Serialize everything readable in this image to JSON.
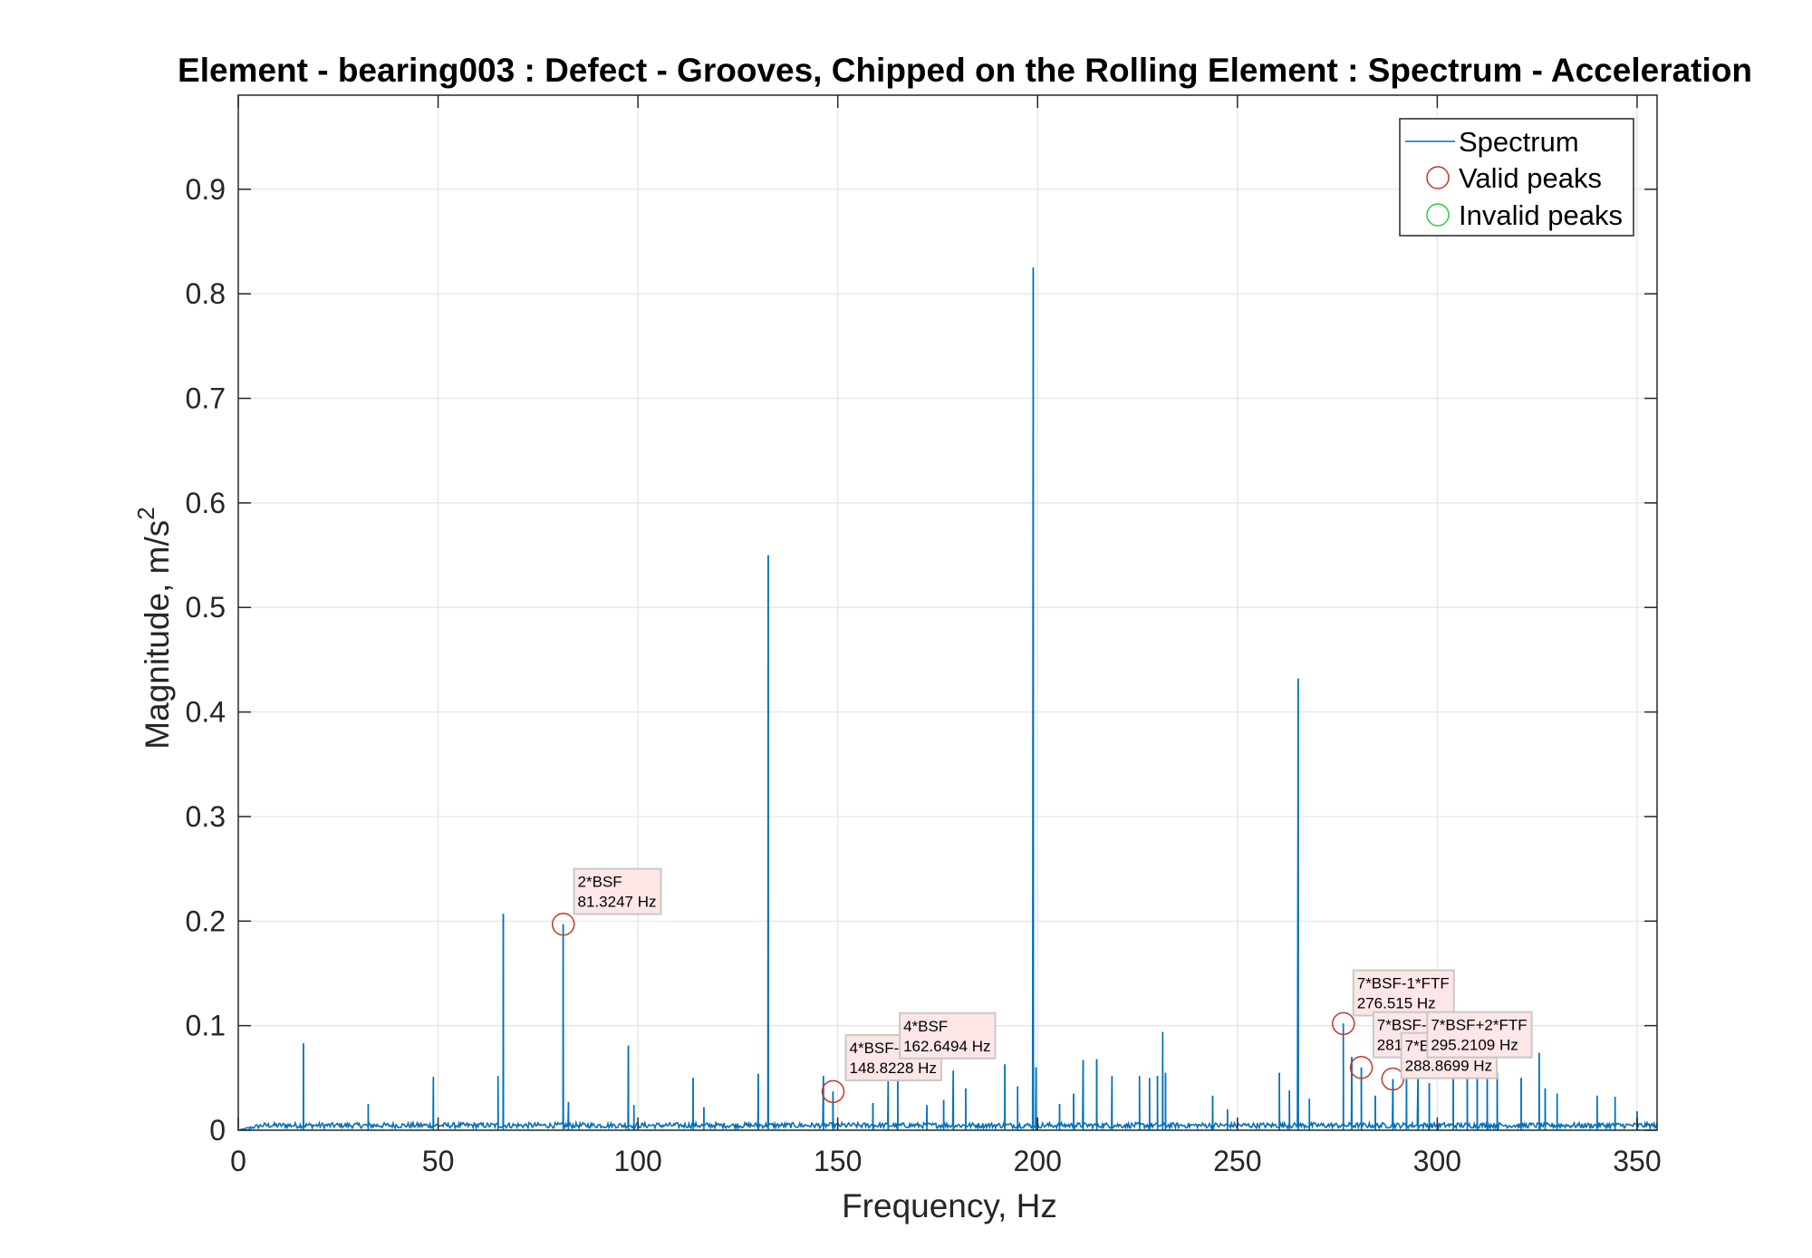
{
  "chart_data": {
    "type": "line",
    "title": "Element - bearing003 : Defect - Grooves, Chipped on the Rolling Element : Spectrum - Acceleration",
    "xlabel": "Frequency, Hz",
    "ylabel": "Magnitude, m/s",
    "ylabel_sup": "2",
    "xlim": [
      0,
      355
    ],
    "ylim": [
      0,
      0.99
    ],
    "xticks": [
      0,
      50,
      100,
      150,
      200,
      250,
      300,
      350
    ],
    "yticks": [
      0,
      0.1,
      0.2,
      0.3,
      0.4,
      0.5,
      0.6,
      0.7,
      0.8,
      0.9
    ],
    "xtick_labels": [
      "0",
      "50",
      "100",
      "150",
      "200",
      "250",
      "300",
      "350"
    ],
    "ytick_labels": [
      "0",
      "0.1",
      "0.2",
      "0.3",
      "0.4",
      "0.5",
      "0.6",
      "0.7",
      "0.8",
      "0.9"
    ],
    "grid": true,
    "legend_position": "top-right",
    "legend": [
      {
        "label": "Spectrum",
        "marker": "line",
        "color": "#0072BD"
      },
      {
        "label": "Valid peaks",
        "marker": "circle",
        "color": "#C0392B"
      },
      {
        "label": "Invalid peaks",
        "marker": "circle",
        "color": "#2ECC40"
      }
    ],
    "series": [
      {
        "name": "Spectrum",
        "color": "#0072BD",
        "noise_floor": 0.004,
        "peaks": [
          {
            "x": 16.3,
            "y": 0.083
          },
          {
            "x": 32.5,
            "y": 0.025
          },
          {
            "x": 48.8,
            "y": 0.051
          },
          {
            "x": 65.0,
            "y": 0.052
          },
          {
            "x": 66.3,
            "y": 0.207
          },
          {
            "x": 81.3,
            "y": 0.197
          },
          {
            "x": 82.6,
            "y": 0.027
          },
          {
            "x": 97.6,
            "y": 0.081
          },
          {
            "x": 99.0,
            "y": 0.024
          },
          {
            "x": 113.8,
            "y": 0.05
          },
          {
            "x": 116.5,
            "y": 0.022
          },
          {
            "x": 130.1,
            "y": 0.054
          },
          {
            "x": 132.6,
            "y": 0.55
          },
          {
            "x": 146.4,
            "y": 0.052
          },
          {
            "x": 148.8,
            "y": 0.037
          },
          {
            "x": 158.8,
            "y": 0.026
          },
          {
            "x": 162.6,
            "y": 0.05
          },
          {
            "x": 165.0,
            "y": 0.048
          },
          {
            "x": 172.3,
            "y": 0.024
          },
          {
            "x": 176.5,
            "y": 0.029
          },
          {
            "x": 178.9,
            "y": 0.057
          },
          {
            "x": 182.0,
            "y": 0.04
          },
          {
            "x": 191.8,
            "y": 0.063
          },
          {
            "x": 195.0,
            "y": 0.042
          },
          {
            "x": 198.9,
            "y": 0.825
          },
          {
            "x": 199.6,
            "y": 0.06
          },
          {
            "x": 205.5,
            "y": 0.025
          },
          {
            "x": 209.0,
            "y": 0.035
          },
          {
            "x": 211.4,
            "y": 0.067
          },
          {
            "x": 214.8,
            "y": 0.068
          },
          {
            "x": 218.6,
            "y": 0.052
          },
          {
            "x": 225.5,
            "y": 0.052
          },
          {
            "x": 228.0,
            "y": 0.05
          },
          {
            "x": 230.0,
            "y": 0.052
          },
          {
            "x": 231.3,
            "y": 0.094
          },
          {
            "x": 232.0,
            "y": 0.055
          },
          {
            "x": 243.8,
            "y": 0.033
          },
          {
            "x": 247.5,
            "y": 0.02
          },
          {
            "x": 260.5,
            "y": 0.055
          },
          {
            "x": 263.0,
            "y": 0.038
          },
          {
            "x": 265.2,
            "y": 0.432
          },
          {
            "x": 268.0,
            "y": 0.03
          },
          {
            "x": 276.5,
            "y": 0.102
          },
          {
            "x": 278.6,
            "y": 0.07
          },
          {
            "x": 281.0,
            "y": 0.06
          },
          {
            "x": 284.5,
            "y": 0.033
          },
          {
            "x": 288.9,
            "y": 0.049
          },
          {
            "x": 292.3,
            "y": 0.055
          },
          {
            "x": 295.2,
            "y": 0.061
          },
          {
            "x": 298.0,
            "y": 0.045
          },
          {
            "x": 304.0,
            "y": 0.055
          },
          {
            "x": 307.5,
            "y": 0.062
          },
          {
            "x": 310.0,
            "y": 0.055
          },
          {
            "x": 312.5,
            "y": 0.058
          },
          {
            "x": 315.0,
            "y": 0.055
          },
          {
            "x": 321.0,
            "y": 0.05
          },
          {
            "x": 325.5,
            "y": 0.074
          },
          {
            "x": 327.0,
            "y": 0.04
          },
          {
            "x": 330.0,
            "y": 0.035
          },
          {
            "x": 340.0,
            "y": 0.033
          },
          {
            "x": 344.5,
            "y": 0.032
          },
          {
            "x": 350.0,
            "y": 0.018
          }
        ]
      }
    ],
    "valid_peaks": [
      {
        "x": 81.3247,
        "y": 0.197
      },
      {
        "x": 148.8228,
        "y": 0.037
      },
      {
        "x": 276.515,
        "y": 0.102
      },
      {
        "x": 281.0,
        "y": 0.06
      },
      {
        "x": 288.8699,
        "y": 0.049
      },
      {
        "x": 295.2109,
        "y": 0.061
      }
    ],
    "annotations": [
      {
        "line1": "2*BSF",
        "line2": "81.3247 Hz",
        "x": 84.0,
        "y": 0.25
      },
      {
        "line1": "4*BSF-",
        "line2": "148.8228 Hz",
        "x": 152.0,
        "y": 0.091
      },
      {
        "line1": "4*BSF",
        "line2": "162.6494 Hz",
        "x": 165.5,
        "y": 0.112
      },
      {
        "line1": "7*BSF-1*FTF",
        "line2": "276.515 Hz",
        "x": 279.0,
        "y": 0.153
      },
      {
        "line1": "7*BSF-",
        "line2": "281",
        "x": 284.0,
        "y": 0.113
      },
      {
        "line1": "7*B",
        "line2": "288.8699 Hz",
        "x": 291.0,
        "y": 0.093
      },
      {
        "line1": "7*BSF+2*FTF",
        "line2": "295.2109 Hz",
        "x": 297.5,
        "y": 0.113
      }
    ]
  }
}
